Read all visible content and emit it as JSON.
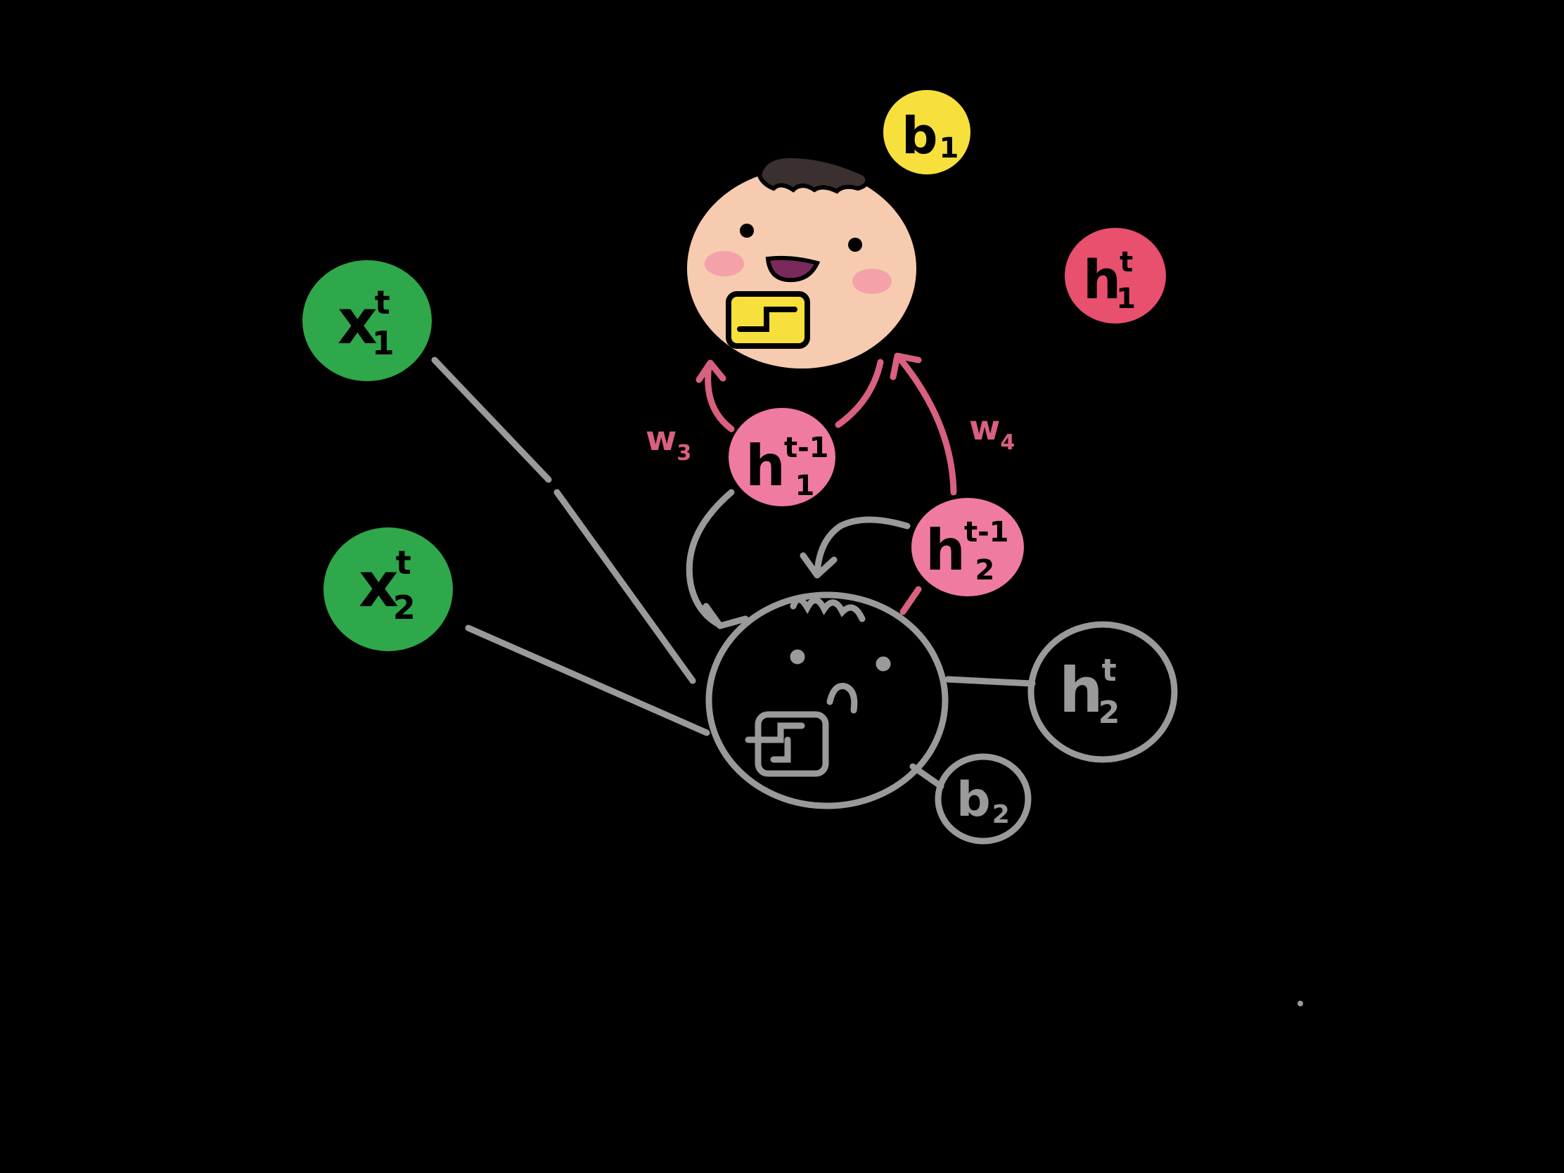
{
  "colors": {
    "background": "#000000",
    "input_green": "#2ea84a",
    "hidden_pink": "#f07ba0",
    "hidden_out_red": "#e8506e",
    "bias_yellow": "#f7e03c",
    "face_skin": "#f6cbb0",
    "cheek": "#f59aa8",
    "hair": "#3a3030",
    "mouth": "#7a2a5a",
    "inactive_gray": "#9a9a9a",
    "recurrent_arrow": "#d9607f",
    "ink": "#000000"
  },
  "nodes": {
    "x1": {
      "base": "x",
      "sup": "t",
      "sub": "1"
    },
    "x2": {
      "base": "x",
      "sup": "t",
      "sub": "2"
    },
    "h1_prev": {
      "base": "h",
      "sup": "t-1",
      "sub": "1"
    },
    "h2_prev": {
      "base": "h",
      "sup": "t-1",
      "sub": "2"
    },
    "h1_out": {
      "base": "h",
      "sup": "t",
      "sub": "1"
    },
    "h2_out": {
      "base": "h",
      "sup": "t",
      "sub": "2"
    },
    "b1": {
      "base": "b",
      "sub": "1"
    },
    "b2": {
      "base": "b",
      "sub": "2"
    }
  },
  "weights": {
    "w3": {
      "base": "w",
      "sub": "3"
    },
    "w4": {
      "base": "w",
      "sub": "4"
    }
  },
  "neurons": {
    "active": {
      "state": "happy",
      "activation_icon": "step-function-icon"
    },
    "inactive": {
      "state": "sad",
      "activation_icon": "step-function-icon"
    }
  }
}
